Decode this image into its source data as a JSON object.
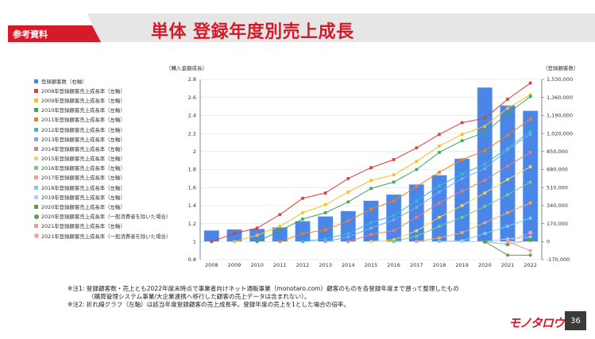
{
  "header": {
    "tag": "参考資料",
    "title": "単体 登録年度別売上成長"
  },
  "notes": [
    "※注1: 登録顧客数・売上とも2022年度末時点で事業者向けネット通販事業（monotaro.com）顧客のものを各登録年度まで遡って整理したもの",
    "（購買管理システム事業/大企業連携へ移行した顧客の売上データは含まれない）。",
    "※注2: 折れ線グラフ（左軸）は該当年度登録顧客の売上成長率。登録年度の売上を1とした場合の倍率。"
  ],
  "footer": {
    "logo": "モノタロウ",
    "page": "36"
  },
  "colors": {
    "brand": "#d71a28",
    "bars": "#4a86e8"
  },
  "chart_data": {
    "type": "bar+line",
    "left_axis_label": "（購入金額成長）",
    "right_axis_label": "（登録顧客数）",
    "ylim_left": [
      0.8,
      2.8
    ],
    "left_ticks": [
      "0.8",
      "1",
      "1.2",
      "1.4",
      "1.6",
      "1.8",
      "2",
      "2.2",
      "2.4",
      "2.6",
      "2.8"
    ],
    "ylim_right": [
      -170000,
      1530000
    ],
    "right_ticks": [
      "-170,000",
      "0",
      "170,000",
      "340,000",
      "510,000",
      "680,000",
      "850,000",
      "1,020,000",
      "1,190,000",
      "1,360,000",
      "1,530,000"
    ],
    "grid": true,
    "legend_position": "left",
    "categories": [
      "2008",
      "2009",
      "2010",
      "2011",
      "2012",
      "2013",
      "2014",
      "2015",
      "2016",
      "2017",
      "2018",
      "2019",
      "2020",
      "2021",
      "2022"
    ],
    "bar_series": {
      "name": "登録顧客数（右軸）",
      "color": "#4a86e8",
      "values": [
        105000,
        115000,
        120000,
        135000,
        193000,
        238000,
        288000,
        386000,
        444000,
        539000,
        627000,
        782000,
        1454000,
        1284000,
        1234000
      ]
    },
    "line_series": [
      {
        "name": "2008年登録顧客売上成長率（左軸）",
        "color": "#e53935",
        "start": 0,
        "values": [
          1.0,
          1.09,
          1.15,
          1.3,
          1.48,
          1.54,
          1.7,
          1.82,
          1.91,
          2.04,
          2.19,
          2.32,
          2.37,
          2.58,
          2.76
        ]
      },
      {
        "name": "2009年登録顧客売上成長率（左軸）",
        "color": "#f9bf1b",
        "start": 1,
        "values": [
          1.0,
          1.07,
          1.17,
          1.32,
          1.41,
          1.55,
          1.68,
          1.74,
          1.89,
          2.06,
          2.19,
          2.28,
          2.48,
          2.63
        ]
      },
      {
        "name": "2010年登録顧客売上成長率（左軸）",
        "color": "#3aa757",
        "start": 2,
        "values": [
          1.0,
          1.12,
          1.25,
          1.32,
          1.44,
          1.59,
          1.66,
          1.8,
          1.99,
          2.12,
          2.21,
          2.42,
          2.61
        ]
      },
      {
        "name": "2011年登録顧客売上成長率（左軸）",
        "color": "#f57c1f",
        "start": 3,
        "values": [
          1.0,
          1.09,
          1.13,
          1.23,
          1.36,
          1.45,
          1.61,
          1.77,
          1.91,
          2.01,
          2.18,
          2.36
        ]
      },
      {
        "name": "2012年登録顧客売上成長率（左軸）",
        "color": "#2fbfd0",
        "start": 4,
        "values": [
          1.0,
          1.03,
          1.09,
          1.21,
          1.29,
          1.45,
          1.62,
          1.75,
          1.86,
          2.04,
          2.22
        ]
      },
      {
        "name": "2013年登録顧客売上成長率（左軸）",
        "color": "#7ba7f0",
        "start": 5,
        "values": [
          1.0,
          1.05,
          1.15,
          1.24,
          1.38,
          1.55,
          1.7,
          1.81,
          2.02,
          2.19
        ]
      },
      {
        "name": "2014年登録顧客売上成長率（左軸）",
        "color": "#ee7b7b",
        "start": 6,
        "values": [
          1.0,
          1.08,
          1.12,
          1.27,
          1.43,
          1.56,
          1.68,
          1.84,
          1.99
        ]
      },
      {
        "name": "2015年登録顧客売上成長率（左軸）",
        "color": "#fcd34d",
        "start": 7,
        "values": [
          1.0,
          1.02,
          1.12,
          1.27,
          1.4,
          1.54,
          1.69,
          1.83
        ]
      },
      {
        "name": "2016年登録顧客売上成長率（左軸）",
        "color": "#6fcf8a",
        "start": 8,
        "values": [
          1.0,
          1.06,
          1.17,
          1.27,
          1.39,
          1.52,
          1.66
        ]
      },
      {
        "name": "2017年登録顧客売上成長率（左軸）",
        "color": "#f6a767",
        "start": 9,
        "values": [
          1.0,
          1.04,
          1.1,
          1.21,
          1.32,
          1.43
        ]
      },
      {
        "name": "2018年登録顧客売上成長率（左軸）",
        "color": "#72d4e6",
        "start": 10,
        "values": [
          1.0,
          1.01,
          1.09,
          1.17,
          1.26
        ]
      },
      {
        "name": "2019年登録顧客売上成長率（左軸）",
        "color": "#b5cdf7",
        "start": 11,
        "values": [
          1.0,
          1.0,
          1.03,
          1.05
        ]
      },
      {
        "name": "2020年登録顧客売上成長率（左軸）",
        "color": "#5e9e45",
        "start": 12,
        "values": [
          1.0,
          0.85,
          0.85
        ]
      },
      {
        "name": "2020年登録顧客売上成長率（一般消費者を除いた場合）",
        "color": "#5e9e45",
        "start": 12,
        "dashed": true,
        "marker": "circle",
        "values": [
          1.0,
          0.97,
          1.02
        ]
      },
      {
        "name": "2021年登録顧客売上成長率（左軸）",
        "color": "#ee9a9a",
        "start": 13,
        "values": [
          1.0,
          0.9
        ]
      },
      {
        "name": "2021年登録顧客売上成長率（一般消費者を除いた場合）",
        "color": "#f2a3a3",
        "start": 13,
        "dashed": true,
        "marker": "circle",
        "values": [
          1.0,
          1.1
        ]
      }
    ]
  }
}
